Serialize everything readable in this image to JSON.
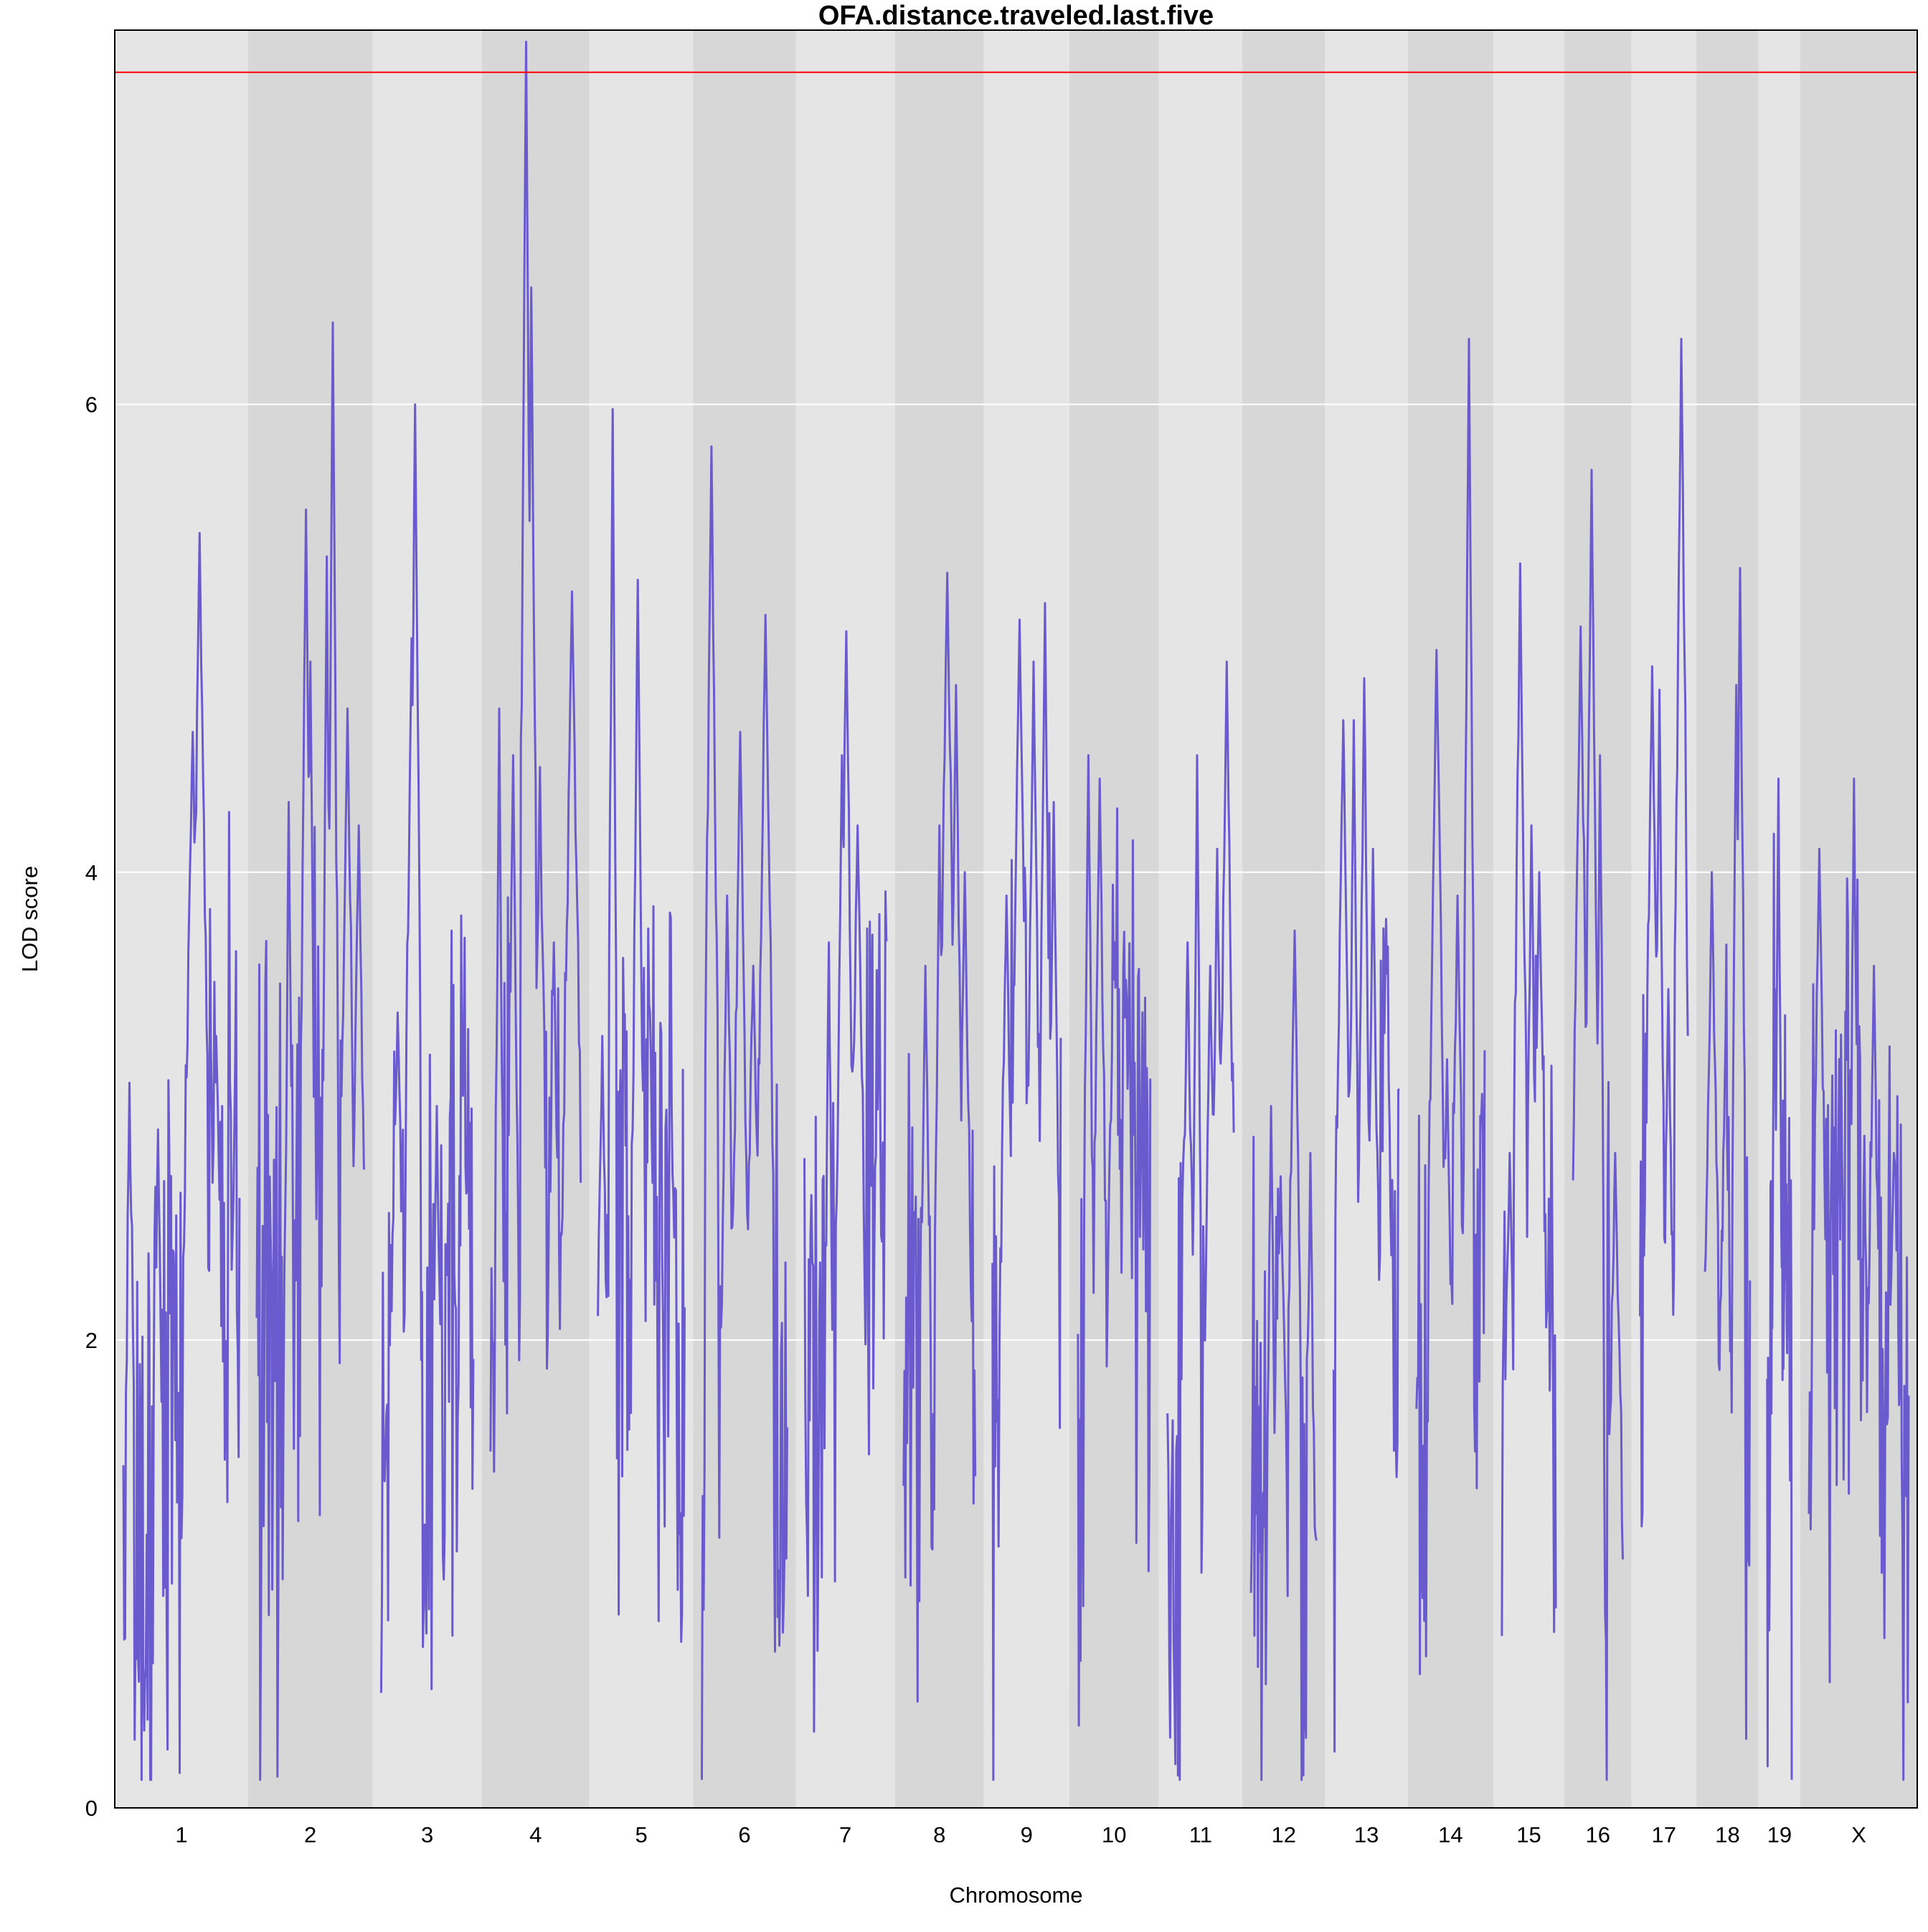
{
  "chart_data": {
    "type": "line",
    "title": "OFA.distance.traveled.last.five",
    "xlabel": "Chromosome",
    "ylabel": "LOD score",
    "ylim": [
      0,
      7.6
    ],
    "yticks": [
      0,
      2,
      4,
      6
    ],
    "grid": "horizontal",
    "threshold": {
      "value": 7.42,
      "color": "#ff0000"
    },
    "colors": {
      "line": "#6a5acd",
      "band_light": "#e5e5e5",
      "band_dark": "#d7d7d7",
      "grid": "#ffffff"
    },
    "chromosomes": [
      {
        "label": "1",
        "length": 195,
        "peaks": [
          [
            0.66,
            5.45
          ],
          [
            0.6,
            4.6
          ],
          [
            0.05,
            3.1
          ],
          [
            0.8,
            3.3
          ],
          [
            0.3,
            2.9
          ],
          [
            0.95,
            2.6
          ]
        ]
      },
      {
        "label": "2",
        "length": 182,
        "peaks": [
          [
            0.71,
            6.35
          ],
          [
            0.46,
            5.55
          ],
          [
            0.65,
            5.35
          ],
          [
            0.3,
            4.3
          ],
          [
            0.85,
            4.7
          ],
          [
            0.5,
            4.9
          ],
          [
            0.95,
            4.2
          ]
        ]
      },
      {
        "label": "3",
        "length": 160,
        "peaks": [
          [
            0.37,
            6.0
          ],
          [
            0.33,
            5.0
          ],
          [
            0.6,
            3.0
          ],
          [
            0.9,
            3.3
          ],
          [
            0.18,
            3.4
          ]
        ]
      },
      {
        "label": "4",
        "length": 157,
        "peaks": [
          [
            0.39,
            7.55
          ],
          [
            0.45,
            6.5
          ],
          [
            0.42,
            5.85
          ],
          [
            0.9,
            5.2
          ],
          [
            0.1,
            4.7
          ],
          [
            0.25,
            4.5
          ],
          [
            0.55,
            4.45
          ],
          [
            0.7,
            3.7
          ]
        ]
      },
      {
        "label": "5",
        "length": 152,
        "peaks": [
          [
            0.17,
            5.98
          ],
          [
            0.46,
            5.25
          ],
          [
            0.05,
            3.3
          ],
          [
            0.6,
            3.4
          ],
          [
            0.85,
            3.0
          ]
        ]
      },
      {
        "label": "6",
        "length": 150,
        "peaks": [
          [
            0.11,
            5.82
          ],
          [
            0.74,
            5.1
          ],
          [
            0.45,
            4.6
          ],
          [
            0.3,
            3.9
          ],
          [
            0.6,
            3.6
          ]
        ]
      },
      {
        "label": "7",
        "length": 145,
        "peaks": [
          [
            0.51,
            5.03
          ],
          [
            0.46,
            4.5
          ],
          [
            0.3,
            3.7
          ],
          [
            0.65,
            4.2
          ],
          [
            0.9,
            3.2
          ]
        ]
      },
      {
        "label": "8",
        "length": 130,
        "peaks": [
          [
            0.61,
            5.28
          ],
          [
            0.73,
            4.8
          ],
          [
            0.5,
            4.2
          ],
          [
            0.3,
            3.6
          ],
          [
            0.85,
            4.0
          ]
        ]
      },
      {
        "label": "9",
        "length": 125,
        "peaks": [
          [
            0.77,
            5.15
          ],
          [
            0.4,
            5.08
          ],
          [
            0.6,
            4.9
          ],
          [
            0.2,
            3.9
          ],
          [
            0.9,
            4.3
          ]
        ]
      },
      {
        "label": "10",
        "length": 131,
        "peaks": [
          [
            0.15,
            4.5
          ],
          [
            0.3,
            4.4
          ],
          [
            0.5,
            3.7
          ],
          [
            0.7,
            3.3
          ],
          [
            0.88,
            3.0
          ]
        ]
      },
      {
        "label": "11",
        "length": 122,
        "peaks": [
          [
            0.45,
            4.5
          ],
          [
            0.9,
            4.9
          ],
          [
            0.3,
            3.7
          ],
          [
            0.65,
            3.6
          ],
          [
            0.75,
            4.1
          ]
        ]
      },
      {
        "label": "12",
        "length": 121,
        "peaks": [
          [
            0.66,
            3.75
          ],
          [
            0.3,
            3.0
          ],
          [
            0.45,
            2.7
          ],
          [
            0.9,
            2.8
          ]
        ]
      },
      {
        "label": "13",
        "length": 121,
        "peaks": [
          [
            0.47,
            4.83
          ],
          [
            0.15,
            4.65
          ],
          [
            0.3,
            4.65
          ],
          [
            0.6,
            4.1
          ],
          [
            0.8,
            3.8
          ]
        ]
      },
      {
        "label": "14",
        "length": 125,
        "peaks": [
          [
            0.77,
            6.28
          ],
          [
            0.3,
            4.95
          ],
          [
            0.6,
            3.9
          ],
          [
            0.45,
            3.2
          ]
        ]
      },
      {
        "label": "15",
        "length": 104,
        "peaks": [
          [
            0.34,
            5.32
          ],
          [
            0.55,
            4.2
          ],
          [
            0.7,
            4.0
          ],
          [
            0.15,
            2.8
          ]
        ]
      },
      {
        "label": "16",
        "length": 98,
        "peaks": [
          [
            0.37,
            5.72
          ],
          [
            0.15,
            5.05
          ],
          [
            0.55,
            4.5
          ],
          [
            0.85,
            2.8
          ]
        ]
      },
      {
        "label": "17",
        "length": 95,
        "peaks": [
          [
            0.86,
            6.28
          ],
          [
            0.25,
            4.88
          ],
          [
            0.4,
            4.78
          ],
          [
            0.6,
            3.5
          ]
        ]
      },
      {
        "label": "18",
        "length": 91,
        "peaks": [
          [
            0.78,
            5.3
          ],
          [
            0.7,
            4.8
          ],
          [
            0.15,
            4.0
          ],
          [
            0.45,
            3.3
          ]
        ]
      },
      {
        "label": "19",
        "length": 61,
        "peaks": [
          [
            0.45,
            4.4
          ],
          [
            0.3,
            3.5
          ],
          [
            0.75,
            2.6
          ]
        ]
      },
      {
        "label": "X",
        "length": 171,
        "peaks": [
          [
            0.45,
            4.4
          ],
          [
            0.1,
            4.1
          ],
          [
            0.65,
            3.6
          ],
          [
            0.85,
            2.8
          ]
        ]
      }
    ]
  }
}
